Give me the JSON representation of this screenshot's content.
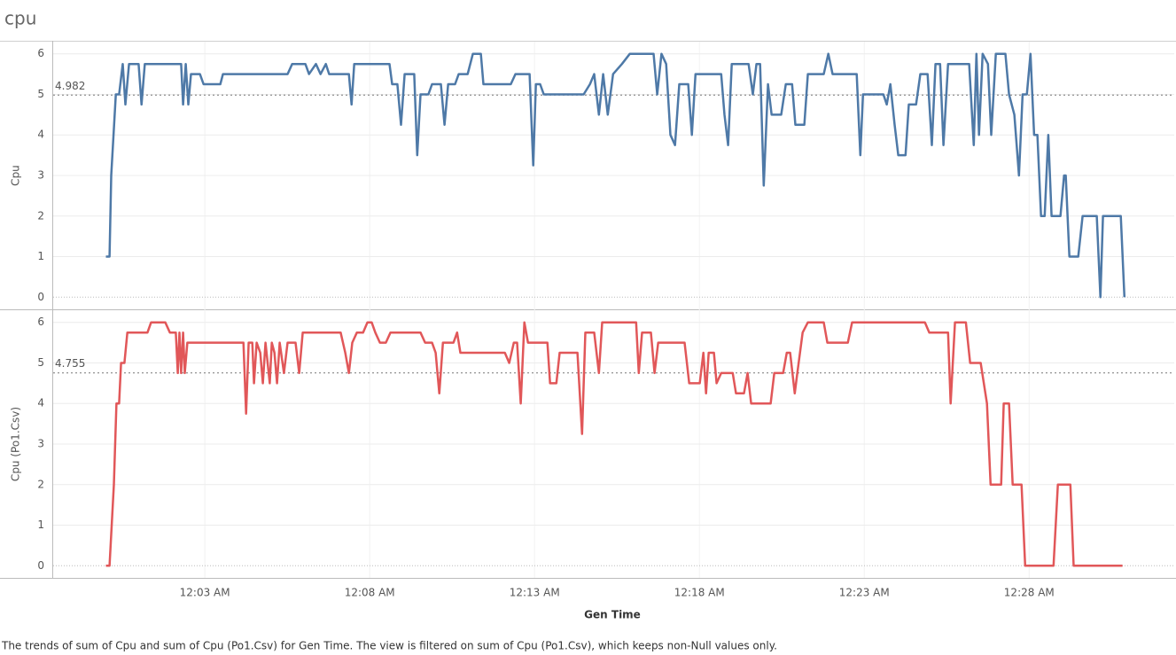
{
  "chart_data": {
    "type": "line",
    "title": "cpu",
    "x_label": "Gen Time",
    "caption": "The trends of sum of Cpu and sum of Cpu (Po1.Csv) for Gen Time. The view is filtered on sum of Cpu (Po1.Csv), which keeps non-Null values only.",
    "xlim": [
      -1.6,
      32.4
    ],
    "xticks": [
      {
        "value": 3,
        "label": "12:03 AM"
      },
      {
        "value": 8,
        "label": "12:08 AM"
      },
      {
        "value": 13,
        "label": "12:13 AM"
      },
      {
        "value": 18,
        "label": "12:18 AM"
      },
      {
        "value": 23,
        "label": "12:23 AM"
      },
      {
        "value": 28,
        "label": "12:28 AM"
      }
    ],
    "grid": true,
    "series": [
      {
        "name": "Cpu",
        "color": "#4e79a7",
        "ylim": [
          -0.3,
          6.3
        ],
        "yticks": [
          0,
          1,
          2,
          3,
          4,
          5,
          6
        ],
        "reference_line": 4.982,
        "x": [
          0,
          0.11,
          0.16,
          0.3,
          0.4,
          0.51,
          0.59,
          0.7,
          0.99,
          1.08,
          1.18,
          2.28,
          2.34,
          2.42,
          2.5,
          2.58,
          2.85,
          2.96,
          3.47,
          3.55,
          5.51,
          5.65,
          6.05,
          6.16,
          6.37,
          6.51,
          6.67,
          6.77,
          7.37,
          7.45,
          7.53,
          8.6,
          8.68,
          8.84,
          8.95,
          9.06,
          9.35,
          9.44,
          9.54,
          9.78,
          9.89,
          10.16,
          10.27,
          10.38,
          10.59,
          10.7,
          10.97,
          11.13,
          11.37,
          11.45,
          12.28,
          12.42,
          12.85,
          12.96,
          13.04,
          13.17,
          13.28,
          14.49,
          14.68,
          14.81,
          14.95,
          15.08,
          15.22,
          15.38,
          15.65,
          15.89,
          16.61,
          16.72,
          16.85,
          16.99,
          17.12,
          17.26,
          17.39,
          17.66,
          17.77,
          17.88,
          18.66,
          18.76,
          18.87,
          18.98,
          19.49,
          19.62,
          19.73,
          19.84,
          19.95,
          20.08,
          20.19,
          20.48,
          20.62,
          20.81,
          20.91,
          21.18,
          21.29,
          21.77,
          21.91,
          22.04,
          22.77,
          22.88,
          22.96,
          23.58,
          23.68,
          23.79,
          23.92,
          24.03,
          24.25,
          24.35,
          24.57,
          24.7,
          24.92,
          25.05,
          25.16,
          25.3,
          25.4,
          25.54,
          26.18,
          26.32,
          26.4,
          26.48,
          26.59,
          26.75,
          26.85,
          26.99,
          27.28,
          27.39,
          27.55,
          27.69,
          27.8,
          27.93,
          28.04,
          28.15,
          28.25,
          28.36,
          28.47,
          28.58,
          28.68,
          28.95,
          29.06,
          29.11,
          29.22,
          29.49,
          29.62,
          30.05,
          30.16,
          30.24,
          30.78,
          30.89
        ],
        "values": [
          1,
          1,
          3,
          5,
          5,
          5.75,
          4.75,
          5.75,
          5.75,
          4.75,
          5.75,
          5.75,
          4.75,
          5.75,
          4.75,
          5.5,
          5.5,
          5.25,
          5.25,
          5.5,
          5.5,
          5.75,
          5.75,
          5.5,
          5.75,
          5.5,
          5.75,
          5.5,
          5.5,
          4.75,
          5.75,
          5.75,
          5.25,
          5.25,
          4.25,
          5.5,
          5.5,
          3.5,
          5,
          5,
          5.25,
          5.25,
          4.25,
          5.25,
          5.25,
          5.5,
          5.5,
          6,
          6,
          5.25,
          5.25,
          5.5,
          5.5,
          3.25,
          5.25,
          5.25,
          5,
          5,
          5.25,
          5.5,
          4.5,
          5.5,
          4.5,
          5.5,
          5.75,
          6,
          6,
          5,
          6,
          5.75,
          4,
          3.75,
          5.25,
          5.25,
          4,
          5.5,
          5.5,
          4.5,
          3.75,
          5.75,
          5.75,
          5,
          5.75,
          5.75,
          2.75,
          5.25,
          4.5,
          4.5,
          5.25,
          5.25,
          4.25,
          4.25,
          5.5,
          5.5,
          6,
          5.5,
          5.5,
          3.5,
          5,
          5,
          4.75,
          5.25,
          4.25,
          3.5,
          3.5,
          4.75,
          4.75,
          5.5,
          5.5,
          3.75,
          5.75,
          5.75,
          3.75,
          5.75,
          5.75,
          3.75,
          6,
          4,
          6,
          5.75,
          4,
          6,
          6,
          5,
          4.5,
          3,
          5,
          5,
          6,
          4,
          4,
          2,
          2,
          4,
          2,
          2,
          3,
          3,
          1,
          1,
          2,
          2,
          0,
          2,
          2,
          0
        ]
      },
      {
        "name": "Cpu (Po1.Csv)",
        "color": "#e15759",
        "ylim": [
          -0.3,
          6.3
        ],
        "yticks": [
          0,
          1,
          2,
          3,
          4,
          5,
          6
        ],
        "reference_line": 4.755,
        "x": [
          0,
          0.11,
          0.24,
          0.32,
          0.4,
          0.46,
          0.56,
          0.65,
          1.26,
          1.37,
          1.8,
          1.94,
          2.12,
          2.18,
          2.23,
          2.28,
          2.34,
          2.39,
          2.47,
          4.17,
          4.25,
          4.33,
          4.44,
          4.49,
          4.57,
          4.68,
          4.76,
          4.84,
          4.97,
          5.03,
          5.11,
          5.19,
          5.27,
          5.4,
          5.51,
          5.75,
          5.86,
          5.97,
          7.12,
          7.26,
          7.37,
          7.47,
          7.61,
          7.8,
          7.93,
          8.06,
          8.17,
          8.31,
          8.49,
          8.63,
          9.54,
          9.68,
          9.89,
          10.0,
          10.11,
          10.22,
          10.54,
          10.65,
          10.75,
          12.1,
          12.23,
          12.37,
          12.47,
          12.58,
          12.69,
          12.8,
          13.39,
          13.47,
          13.66,
          13.76,
          14.3,
          14.44,
          14.54,
          14.81,
          14.95,
          15.05,
          16.08,
          16.16,
          16.26,
          16.53,
          16.64,
          16.75,
          17.55,
          17.69,
          18.01,
          18.12,
          18.2,
          18.28,
          18.44,
          18.52,
          18.66,
          19.01,
          19.11,
          19.35,
          19.46,
          19.57,
          20.16,
          20.27,
          20.54,
          20.65,
          20.75,
          20.89,
          20.97,
          21.13,
          21.29,
          21.77,
          21.88,
          22.5,
          22.63,
          24.84,
          24.97,
          25.54,
          25.62,
          25.75,
          26.08,
          26.21,
          26.53,
          26.72,
          26.83,
          27.15,
          27.23,
          27.39,
          27.5,
          27.77,
          27.88,
          28.74,
          28.87,
          29.25,
          29.35,
          30.83
        ],
        "values": [
          0,
          0,
          2,
          4,
          4,
          5,
          5,
          5.75,
          5.75,
          6,
          6,
          5.75,
          5.75,
          4.75,
          5.75,
          4.75,
          5.75,
          4.75,
          5.5,
          5.5,
          3.75,
          5.5,
          5.5,
          4.5,
          5.5,
          5.25,
          4.5,
          5.5,
          4.5,
          5.5,
          5.25,
          4.5,
          5.5,
          4.75,
          5.5,
          5.5,
          4.75,
          5.75,
          5.75,
          5.25,
          4.75,
          5.5,
          5.75,
          5.75,
          6,
          6,
          5.75,
          5.5,
          5.5,
          5.75,
          5.75,
          5.5,
          5.5,
          5.25,
          4.25,
          5.5,
          5.5,
          5.75,
          5.25,
          5.25,
          5,
          5.5,
          5.5,
          4,
          6,
          5.5,
          5.5,
          4.5,
          4.5,
          5.25,
          5.25,
          3.25,
          5.75,
          5.75,
          4.75,
          6,
          6,
          4.75,
          5.75,
          5.75,
          4.75,
          5.5,
          5.5,
          4.5,
          4.5,
          5.25,
          4.25,
          5.25,
          5.25,
          4.5,
          4.75,
          4.75,
          4.25,
          4.25,
          4.75,
          4,
          4,
          4.75,
          4.75,
          5.25,
          5.25,
          4.25,
          4.75,
          5.75,
          6,
          6,
          5.5,
          5.5,
          6,
          6,
          5.75,
          5.75,
          4,
          6,
          6,
          5,
          5,
          4,
          2,
          2,
          4,
          4,
          2,
          2,
          0,
          0,
          2,
          2,
          0,
          0
        ]
      }
    ]
  }
}
